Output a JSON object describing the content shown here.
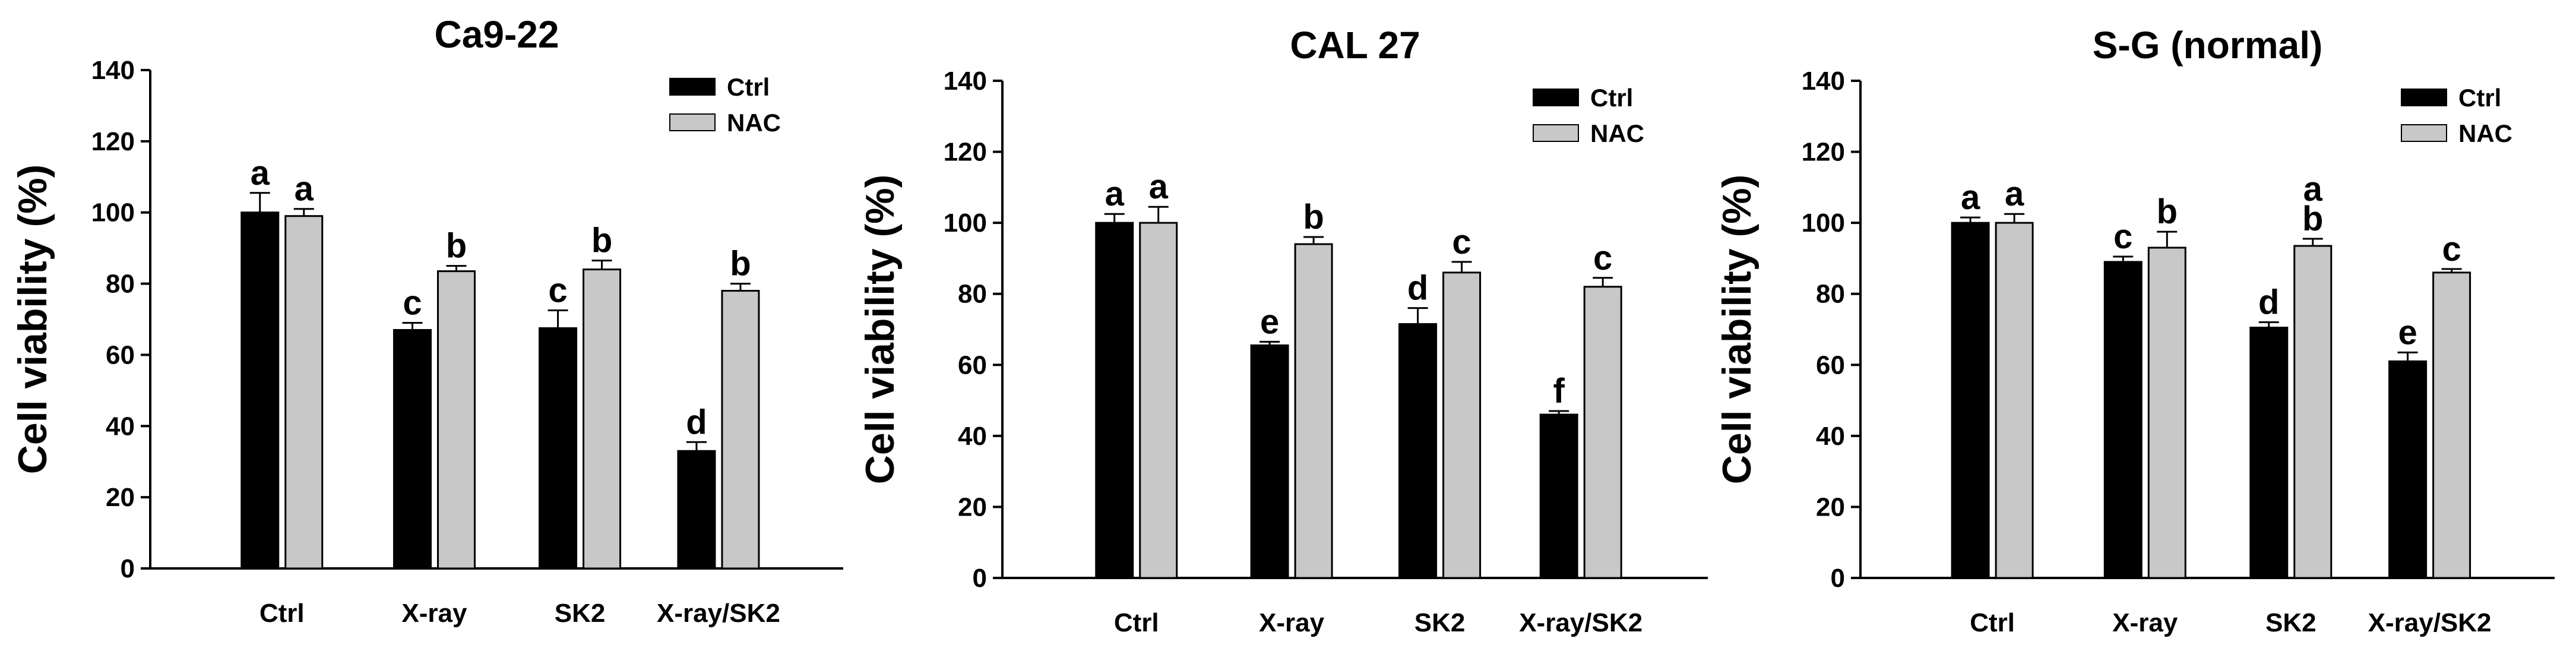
{
  "figure": {
    "colors": {
      "ctrl": "#000000",
      "nac": "#c8c8c8",
      "axis": "#000000",
      "background": "#ffffff"
    }
  },
  "chart_data": [
    {
      "type": "bar",
      "title": "Ca9-22",
      "ylabel": "Cell viability (%)",
      "xlabel": "",
      "categories": [
        "Ctrl",
        "X-ray",
        "SK2",
        "X-ray/SK2"
      ],
      "ylim": [
        0,
        140
      ],
      "yticks": [
        "0",
        "20",
        "40",
        "60",
        "80",
        "100",
        "120",
        "140"
      ],
      "legend_position": "top-right",
      "grid": false,
      "series": [
        {
          "name": "Ctrl",
          "color": "#000000",
          "values": [
            100,
            67,
            67.5,
            33
          ],
          "errors": [
            5.5,
            2,
            5,
            2.5
          ],
          "labels": [
            "a",
            "c",
            "c",
            "d"
          ]
        },
        {
          "name": "NAC",
          "color": "#c8c8c8",
          "values": [
            99,
            83.5,
            84,
            78
          ],
          "errors": [
            2,
            1.5,
            2.5,
            2
          ],
          "labels": [
            "a",
            "b",
            "b",
            "b"
          ]
        }
      ]
    },
    {
      "type": "bar",
      "title": "CAL 27",
      "ylabel": "Cell viability (%)",
      "xlabel": "",
      "categories": [
        "Ctrl",
        "X-ray",
        "SK2",
        "X-ray/SK2"
      ],
      "ylim": [
        0,
        140
      ],
      "yticks": [
        "0",
        "20",
        "40",
        "60",
        "80",
        "100",
        "120",
        "140"
      ],
      "legend_position": "top-right",
      "grid": false,
      "series": [
        {
          "name": "Ctrl",
          "color": "#000000",
          "values": [
            100,
            65.5,
            71.5,
            46
          ],
          "errors": [
            2.5,
            1,
            4.5,
            1
          ],
          "labels": [
            "a",
            "e",
            "d",
            "f"
          ]
        },
        {
          "name": "NAC",
          "color": "#c8c8c8",
          "values": [
            100,
            94,
            86,
            82
          ],
          "errors": [
            4.5,
            2,
            3,
            2.5
          ],
          "labels": [
            "a",
            "b",
            "c",
            "c"
          ]
        }
      ]
    },
    {
      "type": "bar",
      "title": "S-G (normal)",
      "ylabel": "Cell viability (%)",
      "xlabel": "",
      "categories": [
        "Ctrl",
        "X-ray",
        "SK2",
        "X-ray/SK2"
      ],
      "ylim": [
        0,
        140
      ],
      "yticks": [
        "0",
        "20",
        "40",
        "60",
        "80",
        "100",
        "120",
        "140"
      ],
      "legend_position": "top-right",
      "grid": false,
      "series": [
        {
          "name": "Ctrl",
          "color": "#000000",
          "values": [
            100,
            89,
            70.5,
            61
          ],
          "errors": [
            1.5,
            1.5,
            1.5,
            2.5
          ],
          "labels": [
            "a",
            "c",
            "d",
            "e"
          ]
        },
        {
          "name": "NAC",
          "color": "#c8c8c8",
          "values": [
            100,
            93,
            93.5,
            86
          ],
          "errors": [
            2.5,
            4.5,
            2,
            1
          ],
          "labels": [
            "a",
            "b",
            "a\nb",
            "c"
          ]
        }
      ]
    }
  ]
}
